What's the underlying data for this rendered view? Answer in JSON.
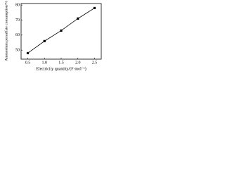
{
  "chart_data": {
    "type": "line",
    "x_label": "Electricity quantity/(F·mol⁻¹)",
    "y_label": "Ammonium persulfate consumption/%",
    "x": [
      0.5,
      1.0,
      1.5,
      2.0,
      2.5
    ],
    "series": [
      {
        "color": "#000000",
        "values": [
          48,
          56,
          63,
          71,
          78
        ]
      }
    ],
    "xlim": [
      0.3,
      2.7
    ],
    "xticks": [
      0.5,
      {
        "value": 1,
        "label": "1.0"
      },
      1.5,
      {
        "value": 2,
        "label": "2.0"
      },
      2.5
    ],
    "ylim": [
      44,
      81
    ],
    "yticks": [
      50,
      60,
      70,
      80
    ],
    "grid": false
  }
}
